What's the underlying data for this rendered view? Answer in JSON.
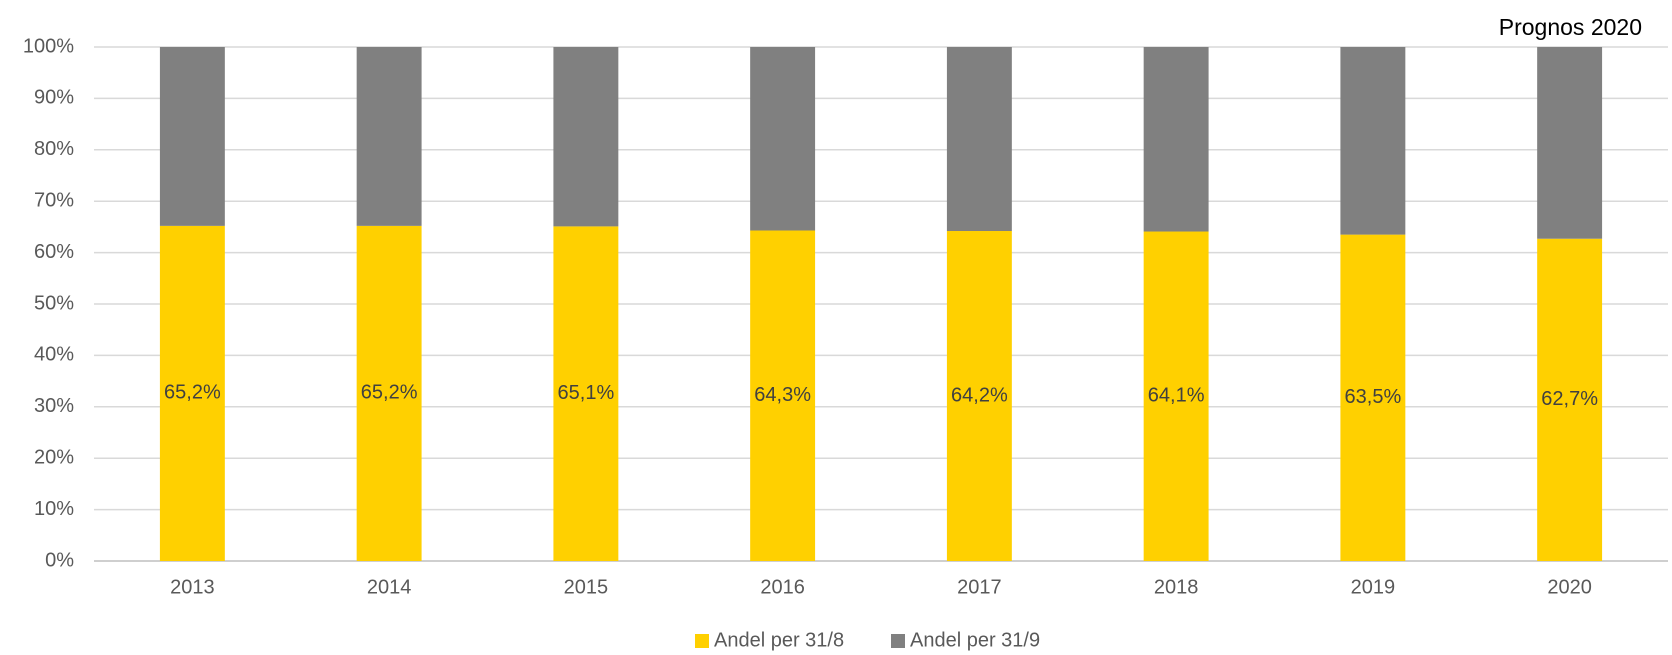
{
  "chart_data": {
    "type": "stacked_bar",
    "annotation": "Prognos 2020",
    "categories": [
      "2013",
      "2014",
      "2015",
      "2016",
      "2017",
      "2018",
      "2019",
      "2020"
    ],
    "series": [
      {
        "name": "Andel per 31/8",
        "color": "#ffd000",
        "values": [
          65.2,
          65.2,
          65.1,
          64.3,
          64.2,
          64.1,
          63.5,
          62.7
        ],
        "value_labels": [
          "65,2%",
          "65,2%",
          "65,1%",
          "64,3%",
          "64,2%",
          "64,1%",
          "63,5%",
          "62,7%"
        ]
      },
      {
        "name": "Andel per 31/9",
        "color": "#808080",
        "values": [
          34.8,
          34.8,
          34.9,
          35.7,
          35.8,
          35.9,
          36.5,
          37.3
        ]
      }
    ],
    "ylim": [
      0,
      100
    ],
    "yticks": [
      {
        "value": 0,
        "label": "0%"
      },
      {
        "value": 10,
        "label": "10%"
      },
      {
        "value": 20,
        "label": "20%"
      },
      {
        "value": 30,
        "label": "30%"
      },
      {
        "value": 40,
        "label": "40%"
      },
      {
        "value": 50,
        "label": "50%"
      },
      {
        "value": 60,
        "label": "60%"
      },
      {
        "value": 70,
        "label": "70%"
      },
      {
        "value": 80,
        "label": "80%"
      },
      {
        "value": 90,
        "label": "90%"
      },
      {
        "value": 100,
        "label": "100%"
      }
    ],
    "grid": true,
    "legend": "bottom"
  }
}
